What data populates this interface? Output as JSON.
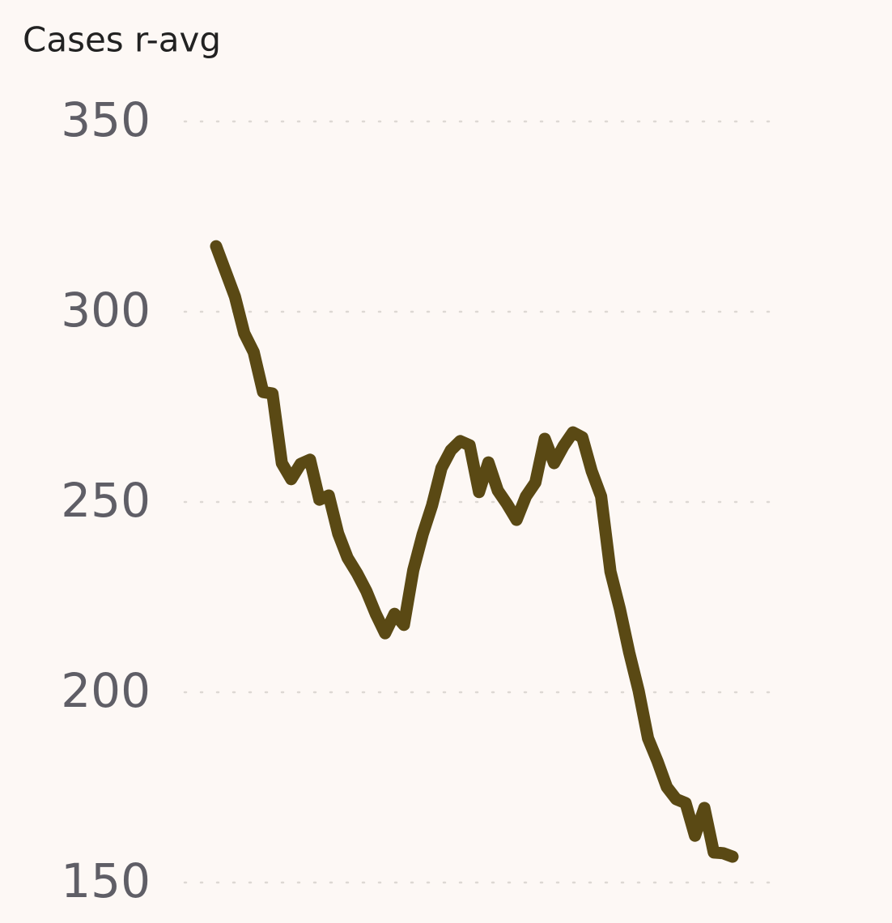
{
  "chart_data": {
    "type": "line",
    "title": "Cases r-avg",
    "series": [
      {
        "color": "#5a4914",
        "values": [
          317.2,
          310.6,
          304.0,
          294.3,
          289.4,
          278.9,
          278.5,
          260.2,
          256.0,
          260.0,
          261.1,
          250.6,
          251.7,
          241.7,
          235.3,
          231.3,
          226.6,
          220.6,
          215.5,
          220.6,
          217.7,
          232.1,
          241.5,
          249.1,
          258.9,
          263.6,
          266.0,
          264.9,
          252.6,
          260.4,
          253.0,
          249.4,
          245.3,
          251.5,
          255.1,
          266.6,
          260.2,
          264.7,
          268.3,
          267.0,
          258.1,
          251.5,
          231.7,
          221.9,
          210.4,
          200.4,
          187.9,
          181.9,
          175.1,
          171.9,
          170.9,
          162.3,
          169.6,
          157.9,
          157.7,
          156.8
        ]
      }
    ],
    "ylim": [
      150,
      350
    ],
    "yticks": [
      150,
      200,
      250,
      300,
      350
    ],
    "grid": true
  }
}
